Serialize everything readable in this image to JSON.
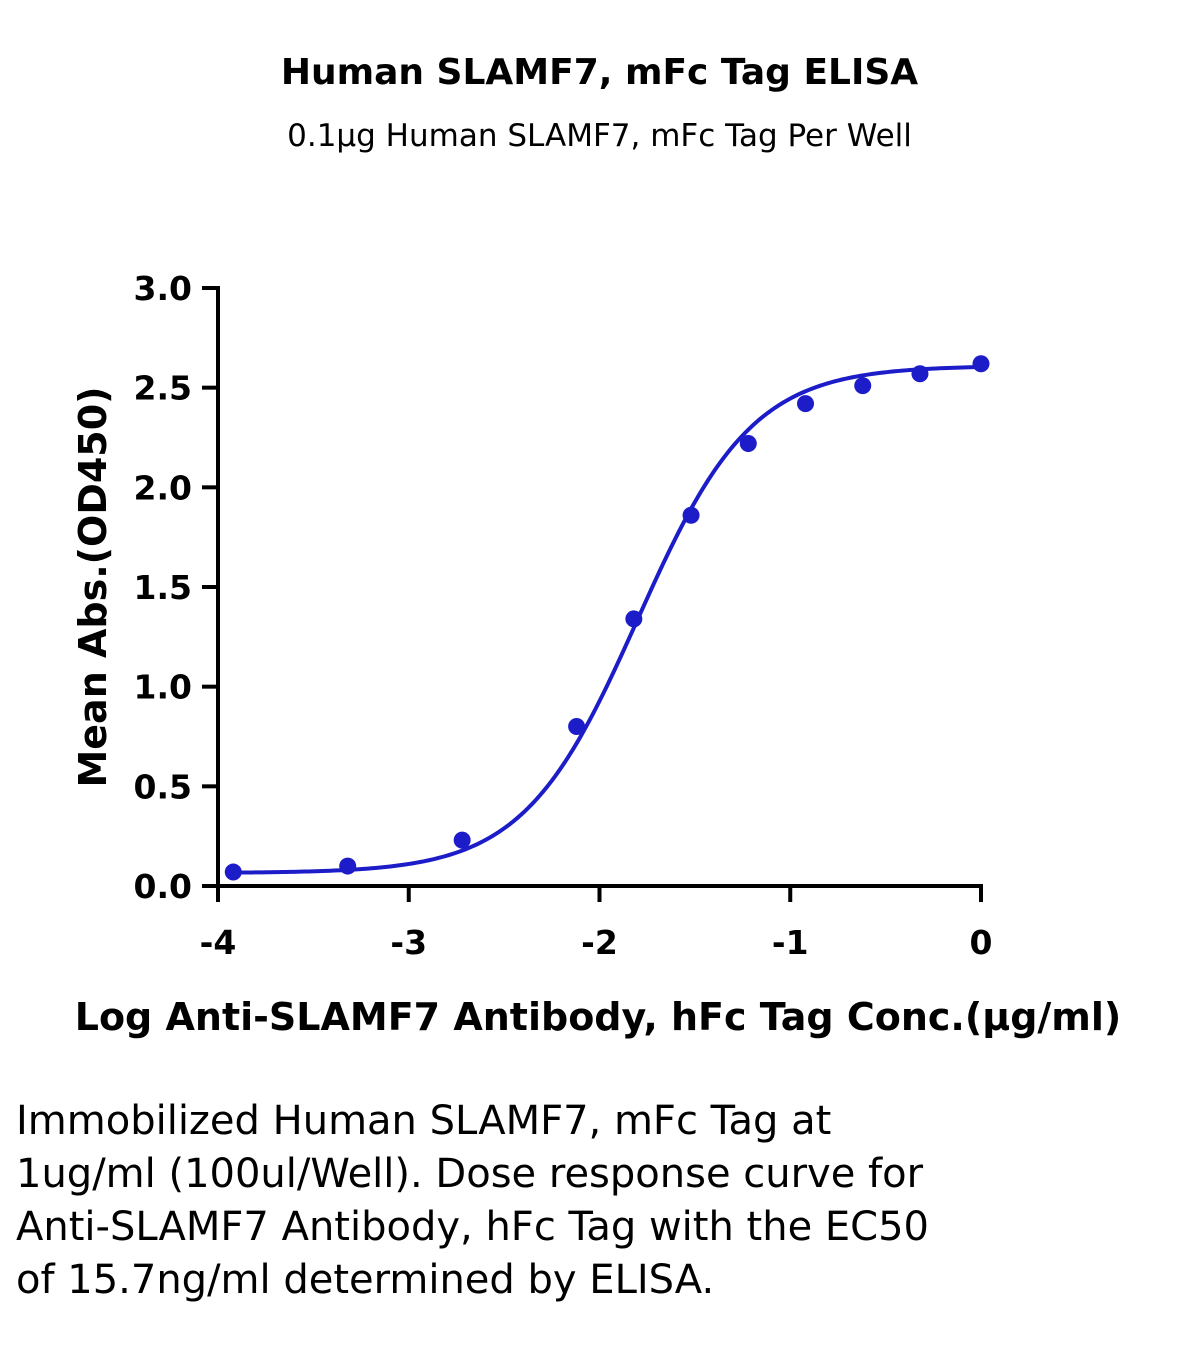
{
  "chart_data": {
    "type": "scatter",
    "title": "Human SLAMF7, mFc Tag ELISA",
    "subtitle": "0.1μg Human SLAMF7, mFc Tag Per Well",
    "xlabel": "Log Anti-SLAMF7 Antibody, hFc Tag Conc.(μg/ml)",
    "ylabel": "Mean Abs.(OD450)",
    "xlim": [
      -4,
      0
    ],
    "ylim": [
      0,
      3
    ],
    "x_ticks": [
      "-4",
      "-3",
      "-2",
      "-1",
      "0"
    ],
    "y_ticks": [
      "0.0",
      "0.5",
      "1.0",
      "1.5",
      "2.0",
      "2.5",
      "3.0"
    ],
    "grid": false,
    "series": [
      {
        "x": [
          -3.92,
          -3.32,
          -2.72,
          -2.12,
          -1.82,
          -1.52,
          -1.22,
          -0.92,
          -0.62,
          -0.32,
          0.0
        ],
        "y": [
          0.07,
          0.1,
          0.23,
          0.8,
          1.34,
          1.86,
          2.22,
          2.42,
          2.51,
          2.57,
          2.62
        ],
        "color": "#1c1cc8",
        "fit": "4PL sigmoid"
      }
    ]
  },
  "caption": "Immobilized Human SLAMF7, mFc Tag at 1ug/ml (100ul/Well). Dose response curve for Anti-SLAMF7 Antibody, hFc Tag with the EC50 of 15.7ng/ml determined by ELISA."
}
